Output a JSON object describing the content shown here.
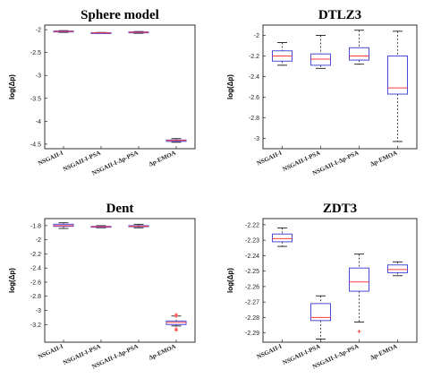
{
  "chart_data": [
    {
      "type": "boxplot",
      "title": "Sphere model",
      "ylabel": "log(Δp)",
      "ylim": [
        -4.6,
        -1.9
      ],
      "yticks": [
        "-2",
        "-2.5",
        "-3",
        "-3.5",
        "-4",
        "-4.5"
      ],
      "categories": [
        "NSGAII-I",
        "NSGAII-I-PSA",
        "NSGAII-I-Δp-PSA",
        "Δp-EMOA"
      ],
      "boxes": [
        {
          "min": -2.06,
          "q1": -2.05,
          "median": -2.04,
          "q3": -2.03,
          "max": -2.02,
          "outliers": []
        },
        {
          "min": -2.08,
          "q1": -2.075,
          "median": -2.07,
          "q3": -2.065,
          "max": -2.06,
          "outliers": []
        },
        {
          "min": -2.08,
          "q1": -2.07,
          "median": -2.06,
          "q3": -2.05,
          "max": -2.04,
          "outliers": []
        },
        {
          "min": -4.46,
          "q1": -4.44,
          "median": -4.42,
          "q3": -4.41,
          "max": -4.38,
          "outliers": []
        }
      ]
    },
    {
      "type": "boxplot",
      "title": "DTLZ3",
      "ylabel": "log(Δp)",
      "ylim": [
        -3.1,
        -1.9
      ],
      "yticks": [
        "-2",
        "-2.2",
        "-2.4",
        "-2.6",
        "-2.8",
        "-3"
      ],
      "categories": [
        "NSGAII-I",
        "NSGAII-I-PSA",
        "NSGAII-I-Δp-PSA",
        "Δp-EMOA"
      ],
      "boxes": [
        {
          "min": -2.29,
          "q1": -2.25,
          "median": -2.2,
          "q3": -2.15,
          "max": -2.07,
          "outliers": []
        },
        {
          "min": -2.32,
          "q1": -2.29,
          "median": -2.23,
          "q3": -2.18,
          "max": -2.0,
          "outliers": []
        },
        {
          "min": -2.28,
          "q1": -2.24,
          "median": -2.2,
          "q3": -2.12,
          "max": -1.95,
          "outliers": []
        },
        {
          "min": -3.03,
          "q1": -2.57,
          "median": -2.51,
          "q3": -2.2,
          "max": -1.96,
          "outliers": []
        }
      ]
    },
    {
      "type": "boxplot",
      "title": "Dent",
      "ylabel": "log(Δp)",
      "ylim": [
        -3.45,
        -1.7
      ],
      "yticks": [
        "-1.8",
        "-2",
        "-2.2",
        "-2.4",
        "-2.6",
        "-2.8",
        "-3",
        "-3.2"
      ],
      "categories": [
        "NSGAII-I",
        "NSGAII-I-PSA",
        "NSGAII-I-Δp-PSA",
        "Δp-EMOA"
      ],
      "boxes": [
        {
          "min": -1.84,
          "q1": -1.81,
          "median": -1.8,
          "q3": -1.78,
          "max": -1.76,
          "outliers": []
        },
        {
          "min": -1.83,
          "q1": -1.82,
          "median": -1.815,
          "q3": -1.81,
          "max": -1.8,
          "outliers": []
        },
        {
          "min": -1.83,
          "q1": -1.815,
          "median": -1.81,
          "q3": -1.8,
          "max": -1.78,
          "outliers": []
        },
        {
          "min": -3.22,
          "q1": -3.2,
          "median": -3.17,
          "q3": -3.15,
          "max": -3.08,
          "outliers": [
            -3.06,
            -3.08,
            -3.26,
            -3.28
          ]
        }
      ]
    },
    {
      "type": "boxplot",
      "title": "ZDT3",
      "ylabel": "log(Δp)",
      "ylim": [
        -2.296,
        -2.216
      ],
      "yticks": [
        "-2.22",
        "-2.23",
        "-2.24",
        "-2.25",
        "-2.26",
        "-2.27",
        "-2.28",
        "-2.29"
      ],
      "categories": [
        "NSGAII-I",
        "NSGAII-I-PSA",
        "NSGAII-I-Δp-PSA",
        "Δp-EMOA"
      ],
      "boxes": [
        {
          "min": -2.234,
          "q1": -2.231,
          "median": -2.229,
          "q3": -2.226,
          "max": -2.222,
          "outliers": []
        },
        {
          "min": -2.294,
          "q1": -2.282,
          "median": -2.28,
          "q3": -2.271,
          "max": -2.266,
          "outliers": []
        },
        {
          "min": -2.283,
          "q1": -2.263,
          "median": -2.257,
          "q3": -2.248,
          "max": -2.239,
          "outliers": [
            -2.289
          ]
        },
        {
          "min": -2.253,
          "q1": -2.251,
          "median": -2.249,
          "q3": -2.246,
          "max": -2.244,
          "outliers": []
        }
      ]
    }
  ],
  "colors": {
    "box": "#4a4ad8",
    "median": "#ff3b3b",
    "whisker": "#000000",
    "outlier": "#ff3b3b",
    "axis": "#000000"
  }
}
